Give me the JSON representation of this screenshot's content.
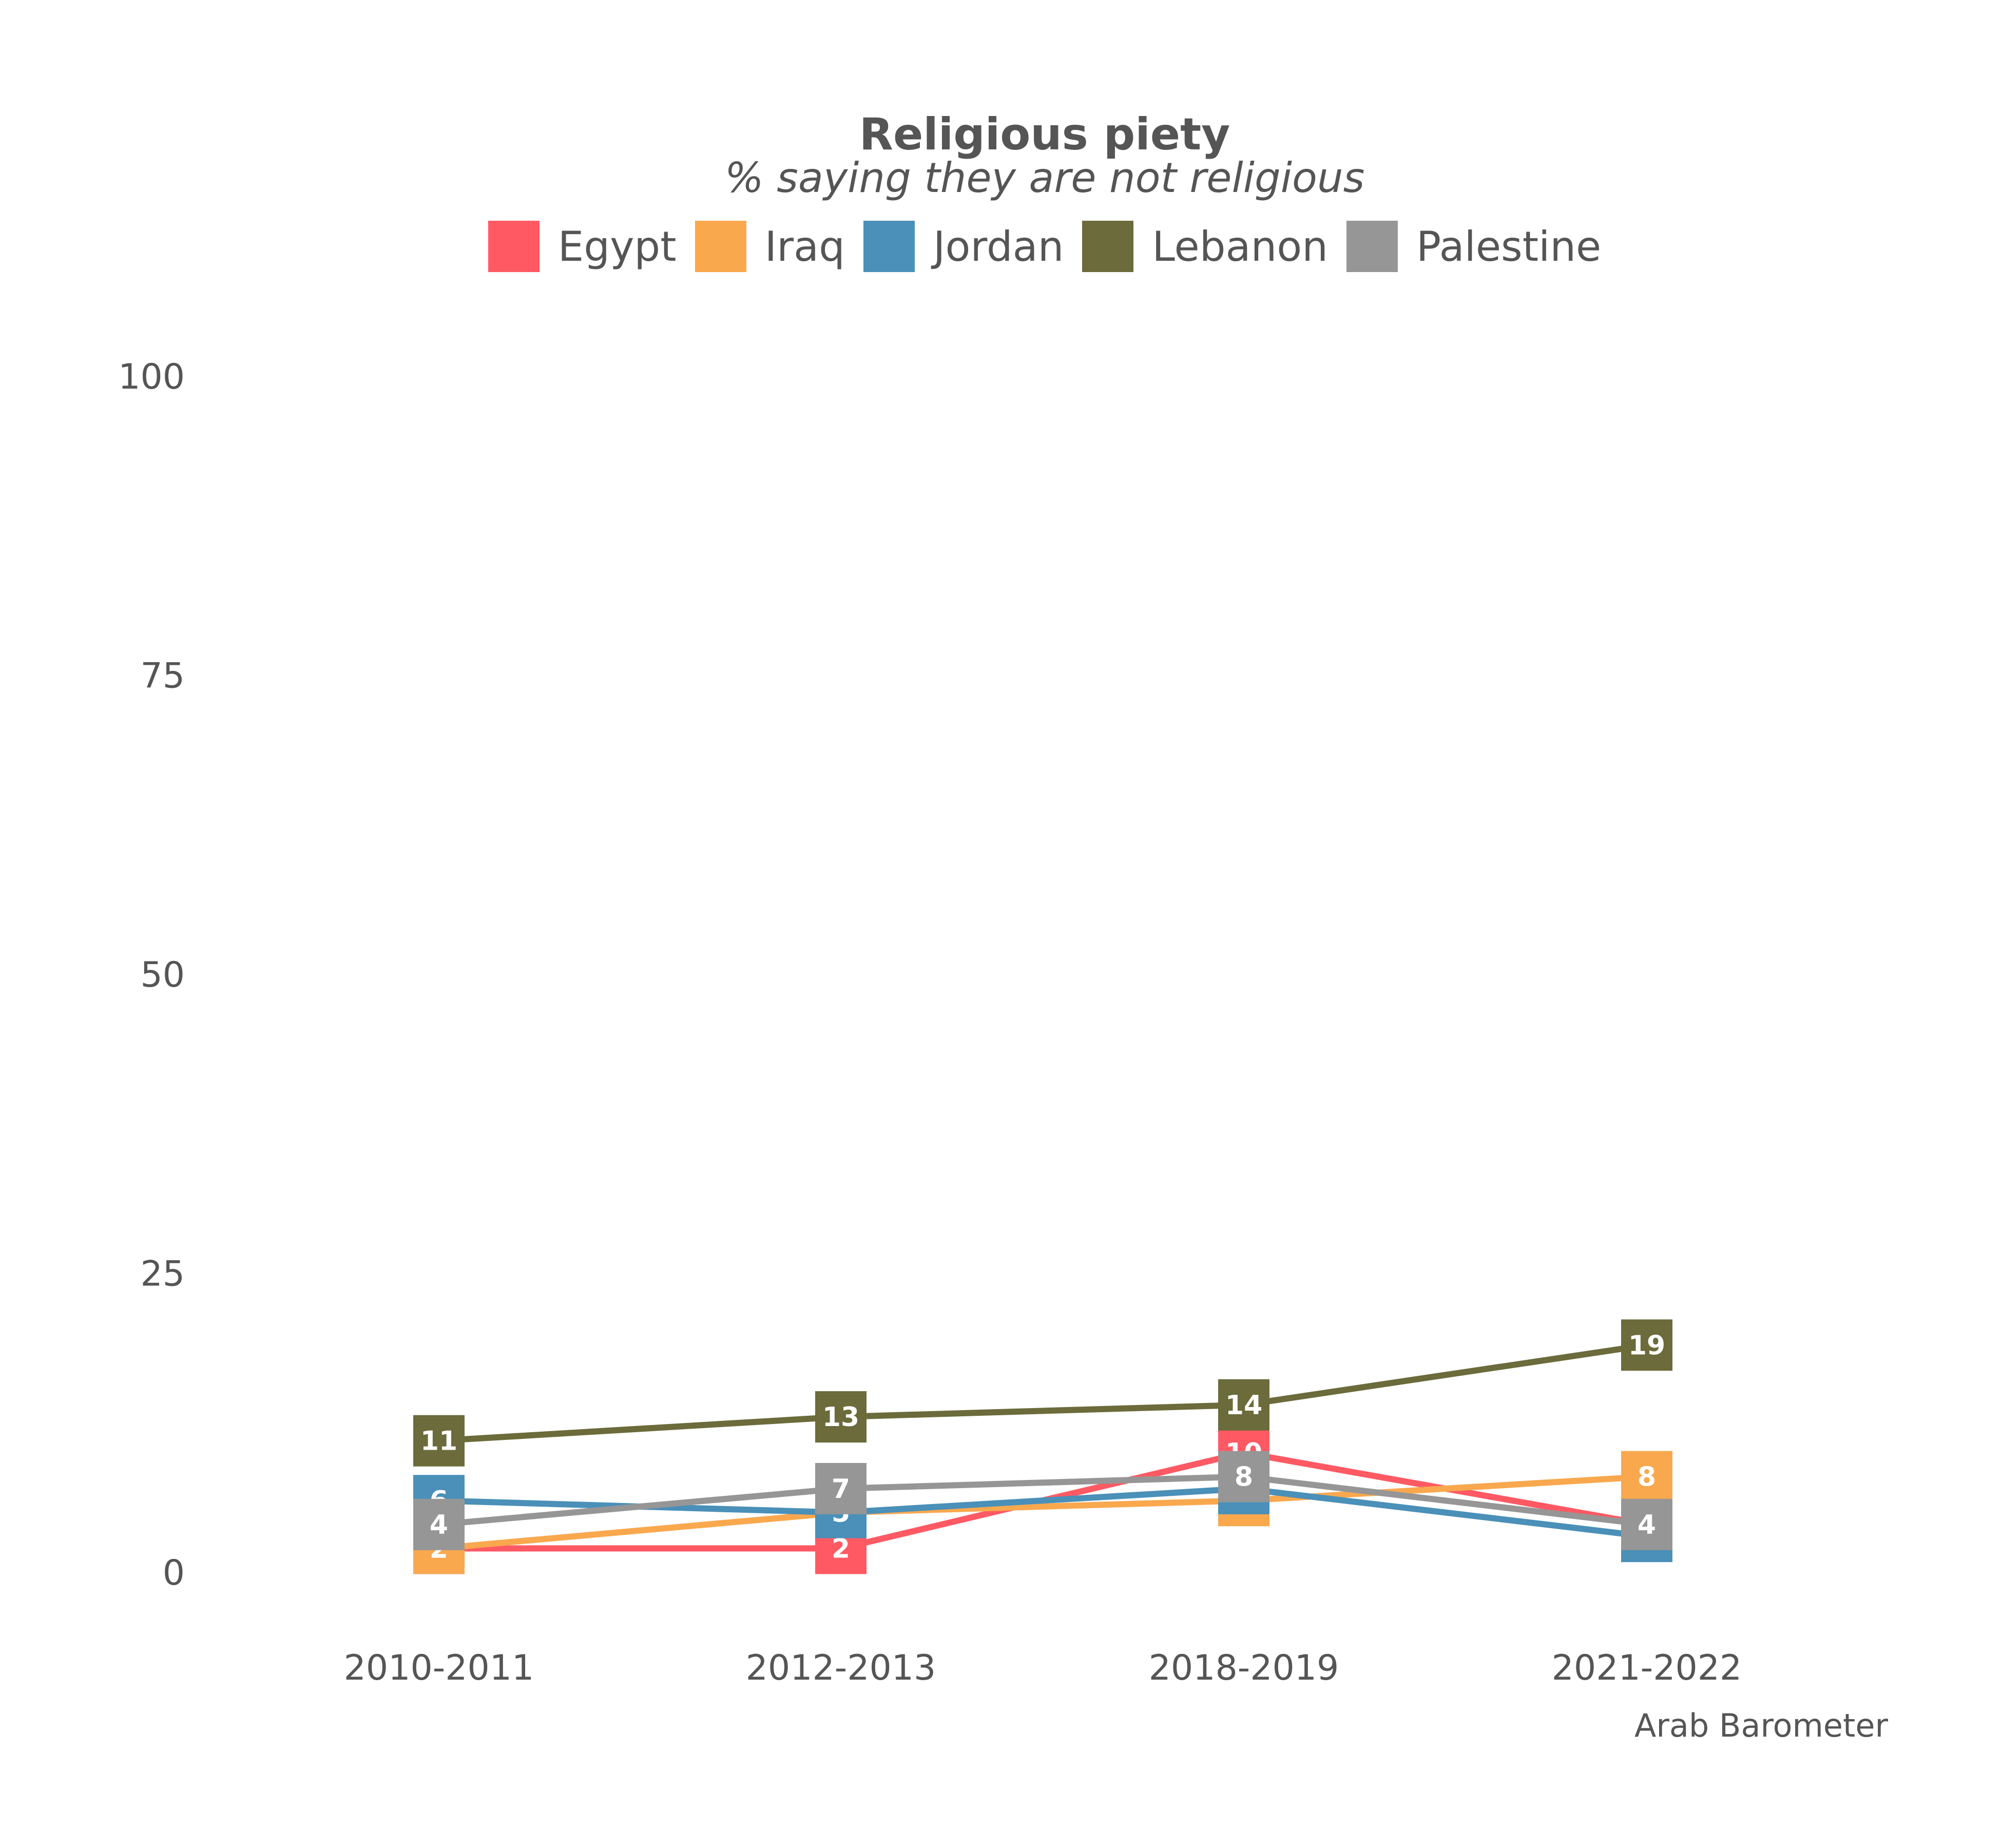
{
  "chart_data": {
    "type": "line",
    "title": "Religious piety",
    "subtitle": "% saying they are not religious",
    "source": "Arab Barometer",
    "categories": [
      "2010-2011",
      "2012-2013",
      "2018-2019",
      "2021-2022"
    ],
    "ylim": [
      0,
      100
    ],
    "yticks": [
      0,
      25,
      50,
      75,
      100
    ],
    "grid": false,
    "legend_position": "top",
    "series": [
      {
        "name": "Egypt",
        "color": "#FF5A64",
        "values": [
          2,
          2,
          10,
          4
        ]
      },
      {
        "name": "Iraq",
        "color": "#F9A84E",
        "values": [
          2,
          5,
          6,
          8
        ]
      },
      {
        "name": "Jordan",
        "color": "#4A90B8",
        "values": [
          6,
          5,
          7,
          3
        ]
      },
      {
        "name": "Lebanon",
        "color": "#6B6B3B",
        "values": [
          11,
          13,
          14,
          19
        ]
      },
      {
        "name": "Palestine",
        "color": "#969696",
        "values": [
          4,
          7,
          8,
          4
        ]
      }
    ]
  }
}
